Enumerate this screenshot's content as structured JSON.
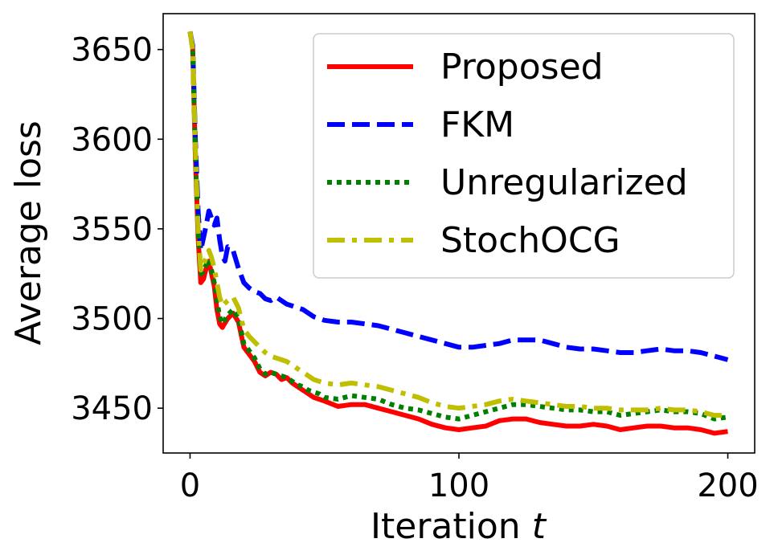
{
  "chart_data": {
    "type": "line",
    "xlabel": "Iteration",
    "xlabel_var": "t",
    "ylabel": "Average loss",
    "xlim": [
      -10,
      210
    ],
    "ylim": [
      3425,
      3670
    ],
    "xticks": [
      0,
      100,
      200
    ],
    "yticks": [
      3450,
      3500,
      3550,
      3600,
      3650
    ],
    "grid": false,
    "legend_position": "top-right",
    "series": [
      {
        "name": "Proposed",
        "color": "#ff0000",
        "style": "solid",
        "x": [
          0,
          1,
          2,
          3,
          4,
          5,
          6,
          7,
          8,
          9,
          10,
          11,
          12,
          14,
          16,
          18,
          20,
          22,
          24,
          26,
          28,
          30,
          32,
          34,
          36,
          38,
          40,
          42,
          44,
          46,
          48,
          50,
          55,
          60,
          65,
          70,
          75,
          80,
          85,
          90,
          95,
          100,
          105,
          110,
          115,
          120,
          125,
          130,
          135,
          140,
          145,
          150,
          155,
          160,
          165,
          170,
          175,
          180,
          185,
          190,
          195,
          200
        ],
        "values": [
          3660,
          3650,
          3590,
          3545,
          3520,
          3522,
          3528,
          3532,
          3525,
          3518,
          3505,
          3497,
          3495,
          3500,
          3503,
          3498,
          3484,
          3480,
          3476,
          3470,
          3468,
          3470,
          3469,
          3466,
          3467,
          3464,
          3462,
          3460,
          3458,
          3456,
          3455,
          3454,
          3451,
          3452,
          3452,
          3450,
          3448,
          3446,
          3444,
          3441,
          3439,
          3438,
          3439,
          3440,
          3443,
          3444,
          3444,
          3442,
          3441,
          3440,
          3440,
          3441,
          3440,
          3438,
          3439,
          3440,
          3440,
          3439,
          3439,
          3438,
          3436,
          3437
        ]
      },
      {
        "name": "FKM",
        "color": "#0000ff",
        "style": "dashed",
        "x": [
          0,
          1,
          2,
          3,
          4,
          5,
          6,
          7,
          8,
          9,
          10,
          11,
          12,
          13,
          14,
          16,
          18,
          20,
          22,
          24,
          26,
          28,
          30,
          32,
          34,
          36,
          38,
          40,
          42,
          44,
          46,
          48,
          50,
          55,
          60,
          65,
          70,
          75,
          80,
          85,
          90,
          95,
          100,
          105,
          110,
          115,
          120,
          125,
          130,
          135,
          140,
          145,
          150,
          155,
          160,
          165,
          170,
          175,
          180,
          185,
          190,
          195,
          200
        ],
        "values": [
          3660,
          3652,
          3600,
          3560,
          3538,
          3545,
          3552,
          3560,
          3556,
          3552,
          3556,
          3544,
          3535,
          3532,
          3540,
          3538,
          3528,
          3520,
          3517,
          3515,
          3514,
          3511,
          3510,
          3512,
          3510,
          3508,
          3507,
          3506,
          3505,
          3503,
          3501,
          3500,
          3499,
          3498,
          3498,
          3497,
          3496,
          3494,
          3492,
          3490,
          3488,
          3486,
          3484,
          3484,
          3485,
          3486,
          3488,
          3488,
          3488,
          3486,
          3484,
          3483,
          3483,
          3482,
          3481,
          3481,
          3482,
          3483,
          3482,
          3482,
          3481,
          3479,
          3477
        ]
      },
      {
        "name": "Unregularized",
        "color": "#008000",
        "style": "dotted",
        "x": [
          0,
          1,
          2,
          3,
          4,
          5,
          6,
          7,
          8,
          9,
          10,
          11,
          12,
          14,
          16,
          18,
          20,
          22,
          24,
          26,
          28,
          30,
          32,
          34,
          36,
          38,
          40,
          42,
          44,
          46,
          48,
          50,
          55,
          60,
          65,
          70,
          75,
          80,
          85,
          90,
          95,
          100,
          105,
          110,
          115,
          120,
          125,
          130,
          135,
          140,
          145,
          150,
          155,
          160,
          165,
          170,
          175,
          180,
          185,
          190,
          195,
          200
        ],
        "values": [
          3660,
          3650,
          3590,
          3548,
          3525,
          3526,
          3530,
          3533,
          3527,
          3520,
          3510,
          3501,
          3497,
          3502,
          3505,
          3500,
          3486,
          3482,
          3478,
          3472,
          3469,
          3470,
          3469,
          3468,
          3467,
          3465,
          3463,
          3462,
          3460,
          3459,
          3458,
          3456,
          3455,
          3457,
          3456,
          3455,
          3452,
          3450,
          3449,
          3447,
          3445,
          3444,
          3446,
          3448,
          3450,
          3452,
          3452,
          3451,
          3450,
          3449,
          3449,
          3448,
          3448,
          3446,
          3447,
          3448,
          3449,
          3448,
          3448,
          3447,
          3444,
          3445
        ]
      },
      {
        "name": "StochOCG",
        "color": "#bfbf00",
        "style": "dashdot",
        "x": [
          0,
          1,
          2,
          3,
          4,
          5,
          6,
          7,
          8,
          9,
          10,
          11,
          12,
          14,
          16,
          18,
          20,
          22,
          24,
          26,
          28,
          30,
          32,
          34,
          36,
          38,
          40,
          42,
          44,
          46,
          48,
          50,
          55,
          60,
          65,
          70,
          75,
          80,
          85,
          90,
          95,
          100,
          105,
          110,
          115,
          120,
          125,
          130,
          135,
          140,
          145,
          150,
          155,
          160,
          165,
          170,
          175,
          180,
          185,
          190,
          195,
          200
        ],
        "values": [
          3660,
          3650,
          3595,
          3550,
          3527,
          3530,
          3534,
          3538,
          3534,
          3528,
          3520,
          3512,
          3507,
          3510,
          3512,
          3506,
          3494,
          3490,
          3487,
          3484,
          3481,
          3479,
          3478,
          3477,
          3476,
          3474,
          3472,
          3470,
          3468,
          3466,
          3465,
          3464,
          3463,
          3464,
          3463,
          3462,
          3460,
          3458,
          3456,
          3453,
          3451,
          3450,
          3451,
          3452,
          3454,
          3455,
          3454,
          3453,
          3452,
          3451,
          3451,
          3450,
          3450,
          3449,
          3449,
          3449,
          3450,
          3449,
          3449,
          3448,
          3446,
          3446
        ]
      }
    ]
  }
}
